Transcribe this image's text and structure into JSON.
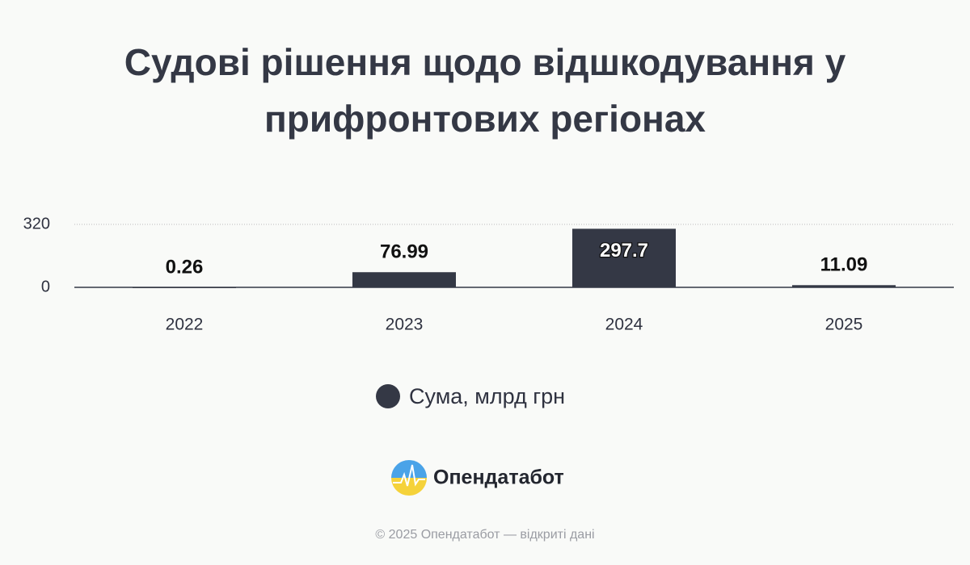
{
  "chart_data": {
    "type": "bar",
    "title": "Судові рішення щодо відшкодування у прифронтових регіонах",
    "categories": [
      "2022",
      "2023",
      "2024",
      "2025"
    ],
    "series": [
      {
        "name": "Сума, млрд грн",
        "color": "#343845",
        "values": [
          0.26,
          76.99,
          297.7,
          11.09
        ]
      }
    ],
    "ylim": [
      0,
      320
    ],
    "yticks": [
      0,
      320
    ],
    "grid": true,
    "legend": "bottom"
  },
  "brand": "Опендатабот",
  "footer": "© 2025 Опендатабот — відкриті дані"
}
